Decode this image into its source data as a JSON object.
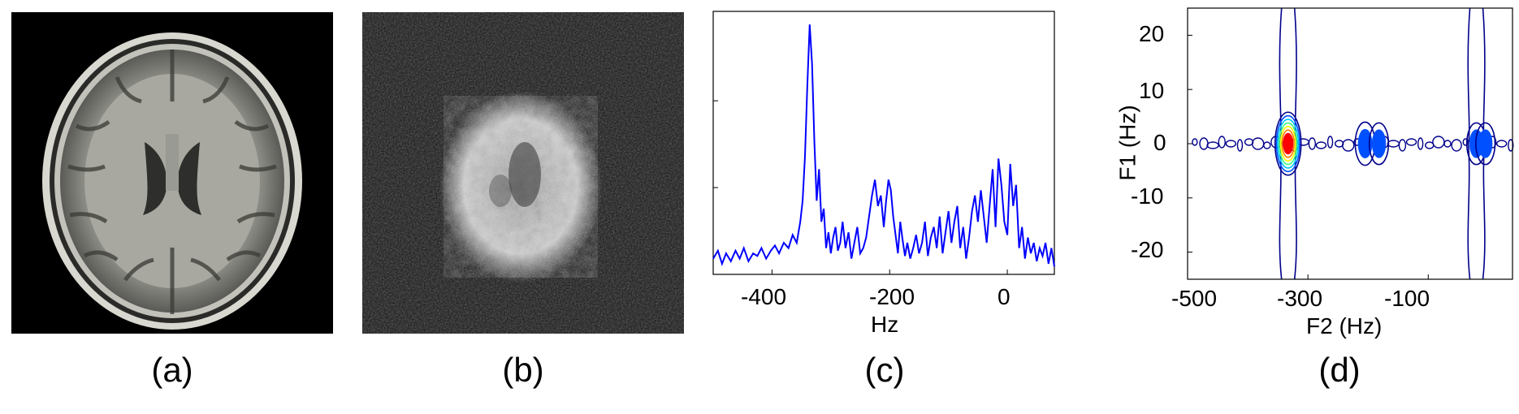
{
  "figure": {
    "panels": [
      {
        "id": "a",
        "caption": "(a)"
      },
      {
        "id": "b",
        "caption": "(b)"
      },
      {
        "id": "c",
        "caption": "(c)"
      },
      {
        "id": "d",
        "caption": "(d)"
      }
    ]
  },
  "chart_data": [
    {
      "type": "line",
      "panel": "c",
      "xlabel": "Hz",
      "ylabel": "",
      "xlim": [
        -500,
        80
      ],
      "ylim": [
        0,
        1
      ],
      "x_ticks": [
        "-400",
        "-200",
        "0"
      ],
      "x_tick_values": [
        -400,
        -200,
        0
      ],
      "line_color": "#0000ff",
      "series": [
        {
          "x": [
            -500,
            -492,
            -485,
            -478,
            -470,
            -462,
            -455,
            -448,
            -440,
            -432,
            -425,
            -418,
            -410,
            -402,
            -395,
            -388,
            -380,
            -372,
            -365,
            -358,
            -352,
            -348,
            -344,
            -340,
            -336,
            -332,
            -328,
            -324,
            -320,
            -316,
            -312,
            -308,
            -304,
            -300,
            -296,
            -292,
            -288,
            -284,
            -280,
            -275,
            -270,
            -265,
            -260,
            -255,
            -250,
            -245,
            -240,
            -235,
            -230,
            -225,
            -220,
            -215,
            -210,
            -206,
            -202,
            -198,
            -194,
            -190,
            -186,
            -182,
            -178,
            -174,
            -170,
            -165,
            -160,
            -155,
            -150,
            -145,
            -140,
            -135,
            -130,
            -125,
            -120,
            -115,
            -110,
            -105,
            -100,
            -95,
            -90,
            -85,
            -80,
            -75,
            -70,
            -65,
            -60,
            -55,
            -50,
            -45,
            -40,
            -35,
            -30,
            -25,
            -20,
            -15,
            -10,
            -5,
            0,
            5,
            10,
            15,
            20,
            25,
            30,
            35,
            40,
            45,
            50,
            55,
            60,
            65,
            70,
            75,
            80
          ],
          "y": [
            0.06,
            0.09,
            0.04,
            0.08,
            0.05,
            0.09,
            0.06,
            0.1,
            0.05,
            0.08,
            0.07,
            0.1,
            0.06,
            0.09,
            0.11,
            0.08,
            0.12,
            0.1,
            0.15,
            0.12,
            0.2,
            0.28,
            0.45,
            0.72,
            0.95,
            0.8,
            0.5,
            0.28,
            0.4,
            0.2,
            0.25,
            0.1,
            0.16,
            0.08,
            0.14,
            0.18,
            0.09,
            0.12,
            0.2,
            0.1,
            0.16,
            0.06,
            0.12,
            0.18,
            0.08,
            0.1,
            0.14,
            0.22,
            0.3,
            0.36,
            0.26,
            0.3,
            0.18,
            0.28,
            0.36,
            0.32,
            0.22,
            0.15,
            0.08,
            0.2,
            0.13,
            0.07,
            0.12,
            0.06,
            0.1,
            0.15,
            0.08,
            0.12,
            0.2,
            0.07,
            0.14,
            0.18,
            0.1,
            0.22,
            0.08,
            0.16,
            0.24,
            0.12,
            0.2,
            0.26,
            0.1,
            0.18,
            0.06,
            0.14,
            0.24,
            0.3,
            0.2,
            0.32,
            0.22,
            0.12,
            0.26,
            0.4,
            0.18,
            0.44,
            0.34,
            0.2,
            0.15,
            0.42,
            0.26,
            0.34,
            0.1,
            0.18,
            0.06,
            0.14,
            0.08,
            0.12,
            0.05,
            0.1,
            0.07,
            0.12,
            0.04,
            0.1,
            0.03
          ]
        }
      ]
    },
    {
      "type": "contour",
      "panel": "d",
      "xlabel": "F2 (Hz)",
      "ylabel": "F1 (Hz)",
      "xlim": [
        -500,
        40
      ],
      "ylim": [
        -25,
        25
      ],
      "x_ticks": [
        "-500",
        "-300",
        "-100"
      ],
      "x_tick_values": [
        -500,
        -300,
        -100
      ],
      "y_ticks": [
        "20",
        "10",
        "0",
        "-10",
        "-20"
      ],
      "y_tick_values": [
        20,
        10,
        0,
        -10,
        -20
      ],
      "peaks": [
        {
          "f2": -333,
          "f1": 0,
          "intensity": 1.0
        },
        {
          "f2": -205,
          "f1": 0,
          "intensity": 0.35
        },
        {
          "f2": -182,
          "f1": 0,
          "intensity": 0.3
        },
        {
          "f2": -20,
          "f1": 0,
          "intensity": 0.3
        },
        {
          "f2": -5,
          "f1": 0,
          "intensity": 0.3
        }
      ],
      "colors": [
        "#00008b",
        "#0050ff",
        "#00c8ff",
        "#40ff80",
        "#ffff00",
        "#ff8000",
        "#ff0000"
      ]
    }
  ]
}
